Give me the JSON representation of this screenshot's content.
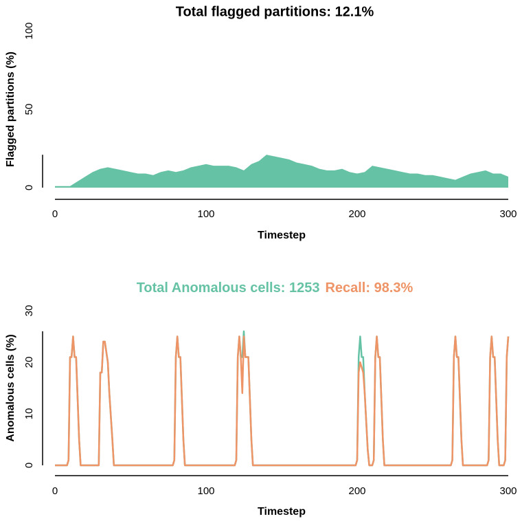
{
  "chart_data": [
    {
      "type": "area",
      "title": "Total flagged partitions: 12.1%",
      "xlabel": "Timestep",
      "ylabel": "Flagged partitions (%)",
      "color": "#66c2a5",
      "x": [
        0,
        5,
        10,
        15,
        20,
        25,
        30,
        35,
        40,
        45,
        50,
        55,
        60,
        65,
        70,
        75,
        80,
        85,
        90,
        95,
        100,
        105,
        110,
        115,
        120,
        125,
        130,
        135,
        140,
        145,
        150,
        155,
        160,
        165,
        170,
        175,
        180,
        185,
        190,
        195,
        200,
        205,
        210,
        215,
        220,
        225,
        230,
        235,
        240,
        245,
        250,
        255,
        260,
        265,
        270,
        275,
        280,
        285,
        290,
        295,
        300
      ],
      "values": [
        1,
        1,
        1,
        4,
        7,
        10,
        12,
        13,
        12,
        11,
        10,
        9,
        9,
        8,
        10,
        11,
        10,
        11,
        13,
        14,
        15,
        14,
        14,
        14,
        13,
        11,
        15,
        17,
        21,
        20,
        19,
        18,
        16,
        15,
        14,
        12,
        11,
        11,
        12,
        10,
        9,
        10,
        14,
        13,
        12,
        11,
        10,
        9,
        9,
        8,
        8,
        7,
        6,
        5,
        7,
        9,
        10,
        11,
        9,
        9,
        7
      ],
      "xlim": [
        0,
        300
      ],
      "xticks": [
        0,
        100,
        200,
        300
      ],
      "ylim": [
        0,
        100
      ],
      "yticks": [
        0,
        50,
        100
      ]
    },
    {
      "type": "line",
      "title": [
        "Total Anomalous cells: 1253",
        "Recall: 98.3%"
      ],
      "xlabel": "Timestep",
      "ylabel": "Anomalous cells (%)",
      "x": [
        0,
        8,
        9,
        10,
        11,
        12,
        13,
        14,
        16,
        17,
        29,
        30,
        31,
        32,
        33,
        34,
        35,
        36,
        38,
        39,
        78,
        79,
        80,
        81,
        82,
        83,
        85,
        86,
        119,
        120,
        121,
        122,
        123,
        124,
        125,
        126,
        128,
        130,
        131,
        199,
        200,
        201,
        202,
        203,
        204,
        205,
        207,
        208,
        210,
        211,
        212,
        213,
        214,
        215,
        217,
        218,
        262,
        263,
        264,
        265,
        266,
        267,
        269,
        270,
        286,
        287,
        288,
        289,
        290,
        291,
        293,
        294,
        297,
        298,
        299,
        300
      ],
      "series": [
        {
          "color": "#66c2a5",
          "values": [
            0,
            0,
            1,
            21,
            21,
            25,
            21,
            21,
            5,
            0,
            0,
            18,
            18,
            24,
            24,
            22,
            20,
            14,
            5,
            0,
            0,
            1,
            21,
            25,
            21,
            21,
            5,
            0,
            0,
            1,
            21,
            25,
            21,
            21,
            26,
            21,
            21,
            5,
            0,
            0,
            1,
            21,
            25,
            21,
            21,
            14,
            3,
            0,
            0,
            1,
            21,
            25,
            21,
            21,
            5,
            0,
            0,
            1,
            21,
            25,
            21,
            21,
            5,
            0,
            0,
            1,
            21,
            25,
            21,
            21,
            5,
            0,
            0,
            1,
            21,
            25
          ]
        },
        {
          "color": "#ee9466",
          "values": [
            0,
            0,
            1,
            21,
            21,
            25,
            21,
            21,
            5,
            0,
            0,
            18,
            18,
            24,
            24,
            22,
            20,
            14,
            5,
            0,
            0,
            1,
            21,
            25,
            21,
            21,
            5,
            0,
            0,
            1,
            21,
            25,
            21,
            14,
            25,
            21,
            21,
            5,
            0,
            0,
            1,
            18,
            20,
            19,
            18,
            14,
            3,
            0,
            0,
            1,
            21,
            25,
            21,
            21,
            5,
            0,
            0,
            1,
            21,
            25,
            21,
            21,
            5,
            0,
            0,
            1,
            21,
            25,
            21,
            21,
            5,
            0,
            0,
            1,
            21,
            25
          ]
        }
      ],
      "xlim": [
        0,
        300
      ],
      "xticks": [
        0,
        100,
        200,
        300
      ],
      "ylim": [
        0,
        30
      ],
      "yticks": [
        0,
        10,
        20,
        30
      ]
    }
  ]
}
